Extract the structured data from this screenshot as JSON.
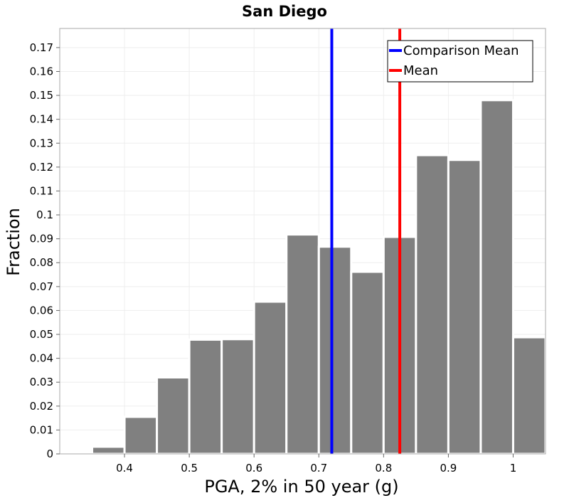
{
  "chart_data": {
    "type": "bar",
    "title": "San Diego",
    "xlabel": "PGA, 2% in 50 year (g)",
    "ylabel": "Fraction",
    "xlim": [
      0.3,
      1.05
    ],
    "ylim": [
      0,
      0.178
    ],
    "bin_width": 0.05,
    "bins": [
      {
        "center": 0.325,
        "value": 0.0
      },
      {
        "center": 0.375,
        "value": 0.003
      },
      {
        "center": 0.425,
        "value": 0.0155
      },
      {
        "center": 0.475,
        "value": 0.032
      },
      {
        "center": 0.525,
        "value": 0.0478
      },
      {
        "center": 0.575,
        "value": 0.048
      },
      {
        "center": 0.625,
        "value": 0.0637
      },
      {
        "center": 0.675,
        "value": 0.0918
      },
      {
        "center": 0.725,
        "value": 0.0867
      },
      {
        "center": 0.775,
        "value": 0.0762
      },
      {
        "center": 0.825,
        "value": 0.0908
      },
      {
        "center": 0.875,
        "value": 0.125
      },
      {
        "center": 0.925,
        "value": 0.123
      },
      {
        "center": 0.975,
        "value": 0.148
      },
      {
        "center": 1.025,
        "value": 0.0488
      }
    ],
    "x_ticks": [
      {
        "value": 0.4,
        "label": "0.4"
      },
      {
        "value": 0.5,
        "label": "0.5"
      },
      {
        "value": 0.6,
        "label": "0.6"
      },
      {
        "value": 0.7,
        "label": "0.7"
      },
      {
        "value": 0.8,
        "label": "0.8"
      },
      {
        "value": 0.9,
        "label": "0.9"
      },
      {
        "value": 1.0,
        "label": "1"
      }
    ],
    "y_ticks": [
      {
        "value": 0,
        "label": "0"
      },
      {
        "value": 0.01,
        "label": "0.01"
      },
      {
        "value": 0.02,
        "label": "0.02"
      },
      {
        "value": 0.03,
        "label": "0.03"
      },
      {
        "value": 0.04,
        "label": "0.04"
      },
      {
        "value": 0.05,
        "label": "0.05"
      },
      {
        "value": 0.06,
        "label": "0.06"
      },
      {
        "value": 0.07,
        "label": "0.07"
      },
      {
        "value": 0.08,
        "label": "0.08"
      },
      {
        "value": 0.09,
        "label": "0.09"
      },
      {
        "value": 0.1,
        "label": "0.1"
      },
      {
        "value": 0.11,
        "label": "0.11"
      },
      {
        "value": 0.12,
        "label": "0.12"
      },
      {
        "value": 0.13,
        "label": "0.13"
      },
      {
        "value": 0.14,
        "label": "0.14"
      },
      {
        "value": 0.15,
        "label": "0.15"
      },
      {
        "value": 0.16,
        "label": "0.16"
      },
      {
        "value": 0.17,
        "label": "0.17"
      }
    ],
    "reference_lines": [
      {
        "name": "Comparison Mean",
        "x": 0.72,
        "color": "#0000ff"
      },
      {
        "name": "Mean",
        "x": 0.825,
        "color": "#ff0000"
      }
    ],
    "legend": {
      "placement": "top-right",
      "entries": [
        {
          "label": "Comparison Mean",
          "color": "#0000ff"
        },
        {
          "label": "Mean",
          "color": "#ff0000"
        }
      ]
    },
    "colors": {
      "bar": "#808080",
      "bar_edge": "#ffffff",
      "grid": "#eeeeee",
      "frame": "#aaaaaa"
    }
  }
}
